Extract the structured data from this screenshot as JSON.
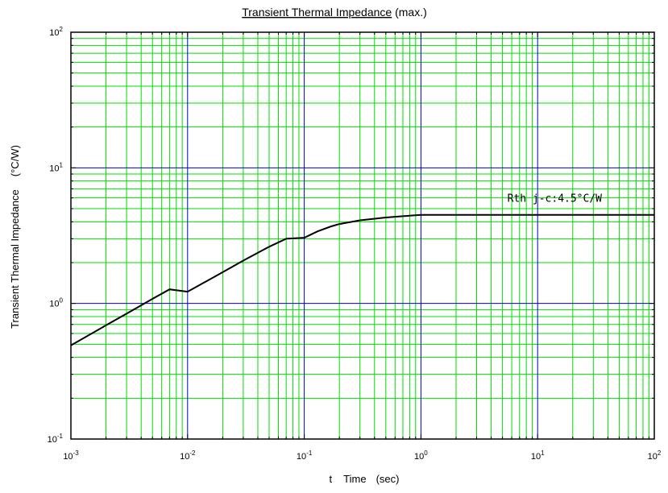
{
  "chart_data": {
    "type": "line",
    "title": "Transient Thermal Impedance",
    "title_suffix": " (max.)",
    "xlabel": {
      "symbol": "t",
      "name": "Time",
      "unit": "(sec)"
    },
    "ylabel": {
      "name": "Transient Thermal Impedance",
      "unit": "(°C/W)"
    },
    "x_scale": "log",
    "y_scale": "log",
    "xlim": [
      0.001,
      100
    ],
    "ylim": [
      0.1,
      100
    ],
    "x_ticks": [
      {
        "base": "10",
        "exp": "-3",
        "value": 0.001
      },
      {
        "base": "10",
        "exp": "-2",
        "value": 0.01
      },
      {
        "base": "10",
        "exp": "-1",
        "value": 0.1
      },
      {
        "base": "10",
        "exp": "0",
        "value": 1
      },
      {
        "base": "10",
        "exp": "1",
        "value": 10
      },
      {
        "base": "10",
        "exp": "2",
        "value": 100
      }
    ],
    "y_ticks": [
      {
        "base": "10",
        "exp": "-1",
        "value": 0.1
      },
      {
        "base": "10",
        "exp": "0",
        "value": 1
      },
      {
        "base": "10",
        "exp": "1",
        "value": 10
      },
      {
        "base": "10",
        "exp": "2",
        "value": 100
      }
    ],
    "grid": true,
    "colors": {
      "minor_grid": "#00dd00",
      "major_grid": "#0000cc",
      "curve": "#000000"
    },
    "annotation": {
      "text": "Rth j-c:4.5°C/W",
      "x": 5.5,
      "y": 5.6
    },
    "series": [
      {
        "x": [
          0.001,
          0.002,
          0.003,
          0.005,
          0.007,
          0.01,
          0.02,
          0.03,
          0.05,
          0.07,
          0.1,
          0.13,
          0.17,
          0.2,
          0.3,
          0.5,
          0.7,
          1,
          2,
          5,
          10,
          20,
          50,
          100
        ],
        "y": [
          0.49,
          0.69,
          0.84,
          1.08,
          1.27,
          1.22,
          1.7,
          2.07,
          2.62,
          3.0,
          3.05,
          3.4,
          3.7,
          3.85,
          4.1,
          4.3,
          4.4,
          4.5,
          4.5,
          4.5,
          4.5,
          4.5,
          4.5,
          4.5
        ]
      }
    ]
  }
}
